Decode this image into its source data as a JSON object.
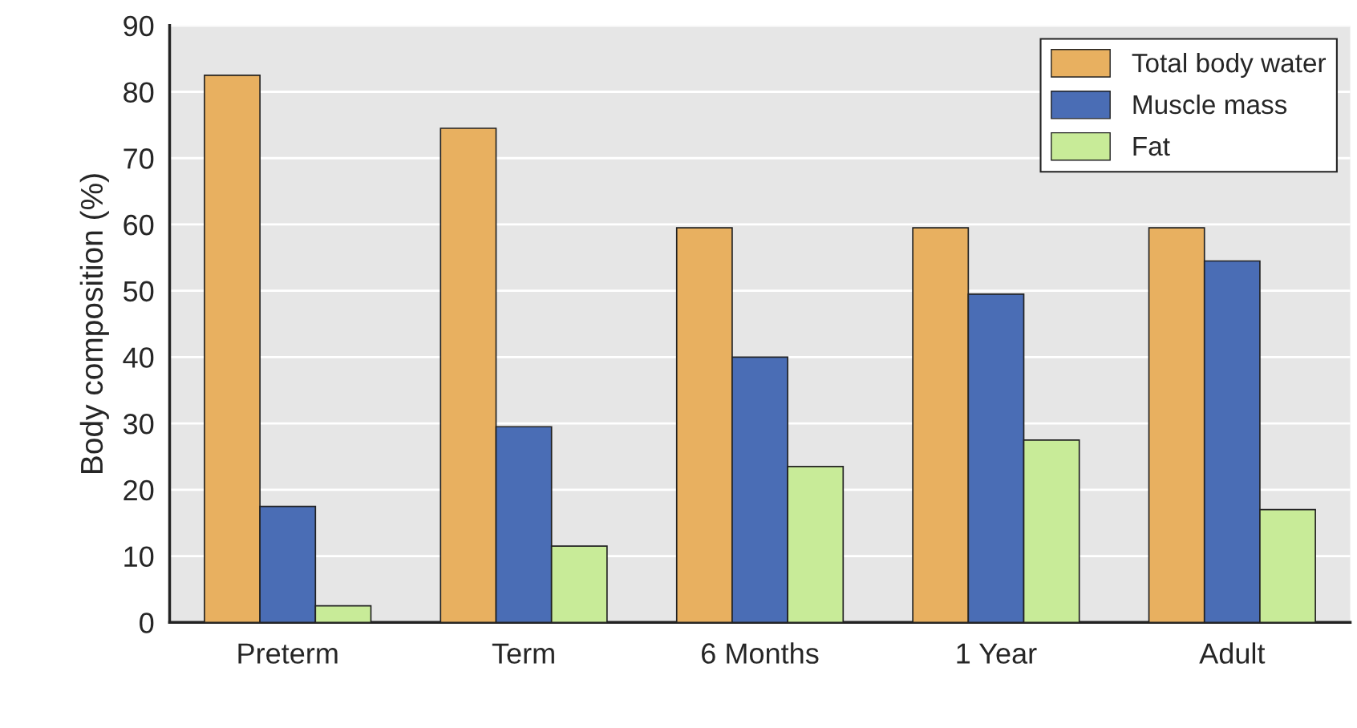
{
  "chart_data": {
    "type": "bar",
    "ylabel": "Body composition (%)",
    "categories": [
      "Preterm",
      "Term",
      "6 Months",
      "1 Year",
      "Adult"
    ],
    "series": [
      {
        "name": "Total body water",
        "color": "#e8b060",
        "values": [
          82.5,
          74.5,
          59.5,
          59.5,
          59.5
        ]
      },
      {
        "name": "Muscle mass",
        "color": "#4a6db5",
        "values": [
          17.5,
          29.5,
          40,
          49.5,
          54.5
        ]
      },
      {
        "name": "Fat",
        "color": "#c8eb98",
        "values": [
          2.5,
          11.5,
          23.5,
          27.5,
          17
        ]
      }
    ],
    "ylim": [
      0,
      90
    ],
    "yticks": [
      0,
      10,
      20,
      30,
      40,
      50,
      60,
      70,
      80,
      90
    ],
    "grid": "y",
    "legend": "top right"
  }
}
